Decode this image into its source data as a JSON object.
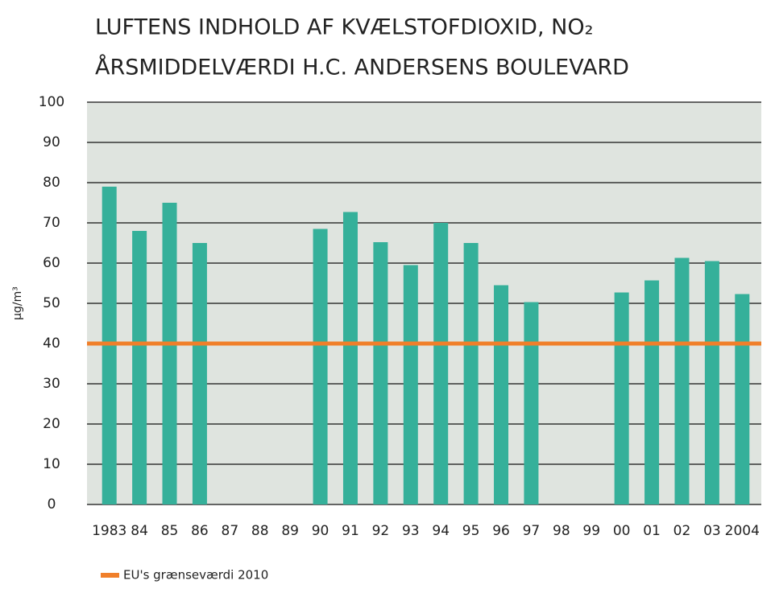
{
  "chart_data": {
    "type": "bar",
    "title": "LUFTENS INDHOLD AF KVÆLSTOFDIOXID, NO₂",
    "subtitle": "ÅRSMIDDELVÆRDI H.C. ANDERSENS BOULEVARD",
    "y_label": "µg/m³",
    "categories": [
      "1983",
      "84",
      "85",
      "86",
      "87",
      "88",
      "89",
      "90",
      "91",
      "92",
      "93",
      "94",
      "95",
      "96",
      "97",
      "98",
      "99",
      "00",
      "01",
      "02",
      "03",
      "2004"
    ],
    "values": [
      79,
      68,
      75,
      65,
      null,
      null,
      null,
      68.5,
      72.7,
      65.2,
      59.5,
      70,
      65,
      54.5,
      50.3,
      null,
      null,
      52.7,
      55.7,
      61.3,
      60.5,
      52.3
    ],
    "color": "#35b09a",
    "ylim": [
      0,
      100
    ],
    "yticks": [
      0,
      10,
      20,
      30,
      40,
      50,
      60,
      70,
      80,
      90,
      100
    ],
    "grid": true,
    "reference_line": {
      "value": 40,
      "label": "EU's grænseværdi 2010",
      "color": "#f07f2a"
    }
  }
}
